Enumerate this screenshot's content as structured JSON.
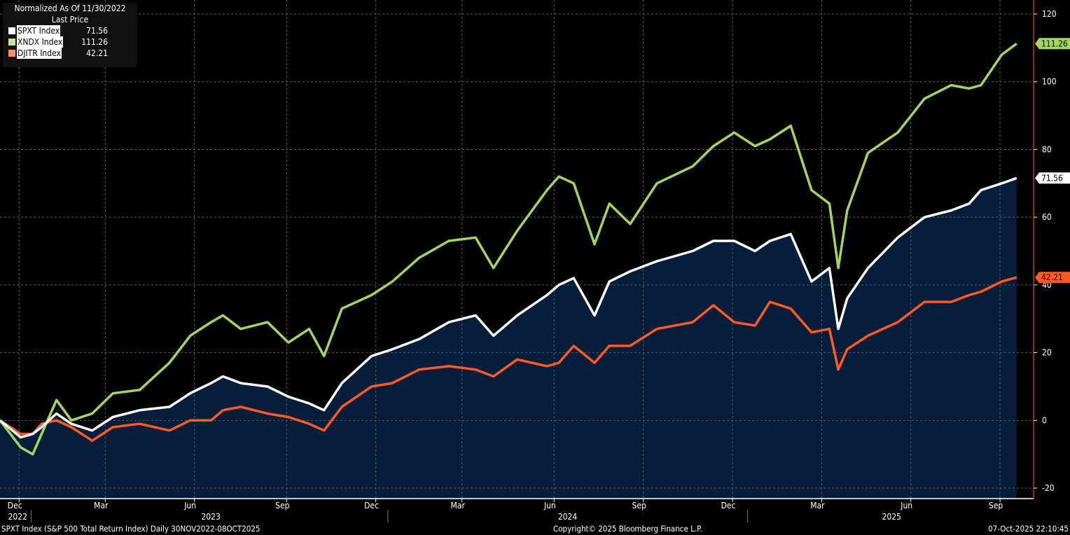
{
  "legend": {
    "title": "Normalized As Of 11/30/2022",
    "subtitle": "Last Price"
  },
  "footer": {
    "left": "SPXT Index (S&P 500 Total Return Index) Daily 30NOV2022-08OCT2025",
    "center": "Copyright© 2025 Bloomberg Finance L.P.",
    "right": "07-Oct-2025 22:10:45"
  },
  "chart_data": {
    "type": "line",
    "title": "Normalized As Of 11/30/2022",
    "x_unit": "months since 2022-11-30",
    "ylim": [
      -20,
      120
    ],
    "y_ticks": [
      -20,
      0,
      20,
      40,
      60,
      80,
      100,
      120
    ],
    "grid": true,
    "legend_position": "top-left",
    "x_tick_labels": [
      {
        "label": "Dec",
        "m": 0.5
      },
      {
        "label": "Mar",
        "m": 3.4
      },
      {
        "label": "Jun",
        "m": 6.4
      },
      {
        "label": "Sep",
        "m": 9.5
      },
      {
        "label": "Dec",
        "m": 12.5
      },
      {
        "label": "Mar",
        "m": 15.4
      },
      {
        "label": "Jun",
        "m": 18.5
      },
      {
        "label": "Sep",
        "m": 21.5
      },
      {
        "label": "Dec",
        "m": 24.5
      },
      {
        "label": "Mar",
        "m": 27.5
      },
      {
        "label": "Jun",
        "m": 30.5
      },
      {
        "label": "Sep",
        "m": 33.5
      }
    ],
    "year_labels": [
      {
        "label": "2022",
        "m": 0.5
      },
      {
        "label": "2023",
        "m": 7.0
      },
      {
        "label": "2024",
        "m": 19.0
      },
      {
        "label": "2025",
        "m": 29.9
      }
    ],
    "year_separators": [
      1.0,
      13.0,
      25.1
    ],
    "x": [
      0,
      0.7,
      1.1,
      1.4,
      1.9,
      2.4,
      3.1,
      3.8,
      4.7,
      5.7,
      6.4,
      7.1,
      7.5,
      8.1,
      9.0,
      9.7,
      10.4,
      10.9,
      11.5,
      12.5,
      13.2,
      14.1,
      15.1,
      16.0,
      16.6,
      17.4,
      18.4,
      18.8,
      19.3,
      20.0,
      20.5,
      21.2,
      22.1,
      23.3,
      24.0,
      24.7,
      25.4,
      25.9,
      26.6,
      27.3,
      27.9,
      28.2,
      28.5,
      29.2,
      30.2,
      31.1,
      32.0,
      32.6,
      33.0,
      33.7,
      34.2
    ],
    "series": [
      {
        "name": "SPXT Index",
        "last": "71.56",
        "color": "#ffffff",
        "fill": true,
        "values": [
          0,
          -5,
          -4,
          -2,
          2,
          -1,
          -3,
          1,
          3,
          4,
          8,
          11,
          13,
          11,
          10,
          7,
          5,
          3,
          11,
          19,
          21,
          24,
          29,
          31,
          25,
          31,
          37,
          40,
          42,
          31,
          41,
          44,
          47,
          50,
          53,
          53,
          50,
          53,
          55,
          41,
          45,
          27,
          36,
          45,
          54,
          60,
          62,
          64,
          68,
          70,
          71.56
        ]
      },
      {
        "name": "XNDX Index",
        "last": "111.26",
        "color": "#a4d65e",
        "fill": false,
        "values": [
          0,
          -8,
          -10,
          -4,
          6,
          0,
          2,
          8,
          9,
          17,
          25,
          29,
          31,
          27,
          29,
          23,
          27,
          19,
          33,
          37,
          41,
          48,
          53,
          54,
          45,
          56,
          68,
          72,
          70,
          52,
          64,
          58,
          70,
          75,
          81,
          85,
          81,
          83,
          87,
          68,
          64,
          45,
          62,
          79,
          85,
          95,
          99,
          98,
          99,
          108,
          111.26
        ]
      },
      {
        "name": "DJITR Index",
        "last": "42.21",
        "color": "#ff5a1f",
        "fill": false,
        "values": [
          0,
          -4,
          -4,
          -1,
          0,
          -2,
          -6,
          -2,
          -1,
          -3,
          0,
          0,
          3,
          4,
          2,
          1,
          -1,
          -3,
          4,
          10,
          11,
          15,
          16,
          15,
          13,
          18,
          16,
          17,
          22,
          17,
          22,
          22,
          27,
          29,
          34,
          29,
          28,
          35,
          33,
          26,
          27,
          15,
          21,
          25,
          29,
          35,
          35,
          37,
          38,
          41,
          42.21
        ]
      }
    ],
    "legend_swatches": [
      "#ffffff",
      "#c6e59a",
      "#ff8c6a"
    ]
  }
}
